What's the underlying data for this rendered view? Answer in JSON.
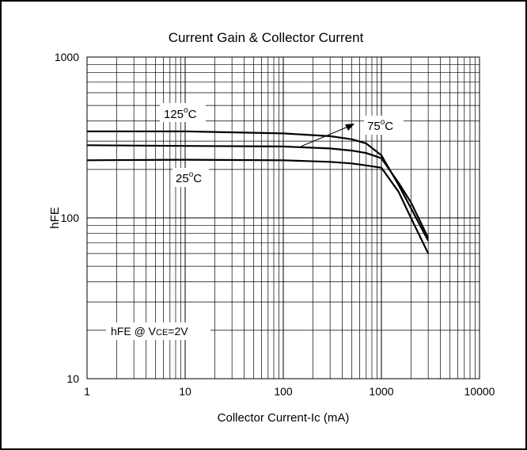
{
  "chart_data": {
    "type": "line",
    "title": "Current Gain & Collector Current",
    "xlabel": "Collector Current-Ic (mA)",
    "ylabel": "hFE",
    "x_scale": "log",
    "y_scale": "log",
    "xlim": [
      1,
      10000
    ],
    "ylim": [
      10,
      1000
    ],
    "grid": true,
    "x_ticks": [
      "1",
      "10",
      "100",
      "1000",
      "10000"
    ],
    "y_ticks": [
      "10",
      "100",
      "1000"
    ],
    "series": [
      {
        "name": "125°C",
        "x": [
          1,
          10,
          100,
          300,
          500,
          700,
          1000,
          1500,
          2000,
          3000
        ],
        "y": [
          345,
          345,
          335,
          322,
          308,
          290,
          245,
          160,
          115,
          72
        ]
      },
      {
        "name": "75°C",
        "x": [
          1,
          10,
          100,
          300,
          500,
          700,
          1000,
          1500,
          2000,
          3000
        ],
        "y": [
          283,
          280,
          278,
          270,
          262,
          253,
          235,
          165,
          125,
          75
        ]
      },
      {
        "name": "25°C",
        "x": [
          1,
          10,
          100,
          300,
          500,
          700,
          1000,
          1500,
          2000,
          3000
        ],
        "y": [
          228,
          230,
          228,
          223,
          218,
          212,
          205,
          145,
          100,
          60
        ]
      }
    ],
    "annotations": {
      "label_125": {
        "base": "125",
        "sup": "o",
        "unit": "C"
      },
      "label_75": {
        "base": "75",
        "sup": "o",
        "unit": "C"
      },
      "label_25": {
        "base": "25",
        "sup": "o",
        "unit": "C"
      },
      "condition": {
        "prefix": "hFE @ V",
        "sub": "CE",
        "suffix": "=2V"
      }
    }
  }
}
